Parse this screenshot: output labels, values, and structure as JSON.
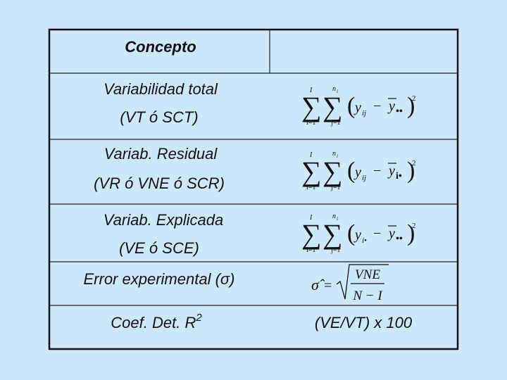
{
  "table": {
    "header": {
      "concept": "Concepto"
    },
    "rows": [
      {
        "concept": [
          "Variabilidad total",
          "(VT ó SCT)"
        ],
        "formula": {
          "sum": "∑",
          "outer_top": "I",
          "outer_bottom": "i=1",
          "inner_top": "n",
          "inner_top_sub": "i",
          "inner_bottom": "j=1",
          "open": "(",
          "term": "y",
          "term_sub": "ij",
          "minus": "−",
          "mean": "y",
          "mean_sub": "••",
          "close": ")",
          "power": "2"
        }
      },
      {
        "concept": [
          "Variab. Residual",
          "(VR ó VNE ó SCR)"
        ],
        "formula": {
          "sum": "∑",
          "outer_top": "I",
          "outer_bottom": "i=1",
          "inner_top": "n",
          "inner_top_sub": "i",
          "inner_bottom": "j=1",
          "open": "(",
          "term": "y",
          "term_sub": "ij",
          "minus": "−",
          "mean": "y",
          "mean_sub": "i•",
          "close": ")",
          "power": "2"
        }
      },
      {
        "concept": [
          "Variab. Explicada",
          "(VE ó SCE)"
        ],
        "formula": {
          "sum": "∑",
          "outer_top": "I",
          "outer_bottom": "i=1",
          "inner_top": "n",
          "inner_top_sub": "i",
          "inner_bottom": "j=1",
          "open": "(",
          "term": "y",
          "term_sub": "i•",
          "minus": "−",
          "mean": "y",
          "mean_sub": "••",
          "close": ")",
          "power": "2"
        }
      },
      {
        "concept": [
          "Error experimental (σ)"
        ],
        "formula": {
          "symbol": "σ̂",
          "equals": "=",
          "numerator": "VNE",
          "denominator": "N − I"
        }
      },
      {
        "concept": [
          "Coef. Det. R",
          "2"
        ],
        "formula": {
          "text": "(VE/VT) x 100"
        }
      }
    ]
  }
}
